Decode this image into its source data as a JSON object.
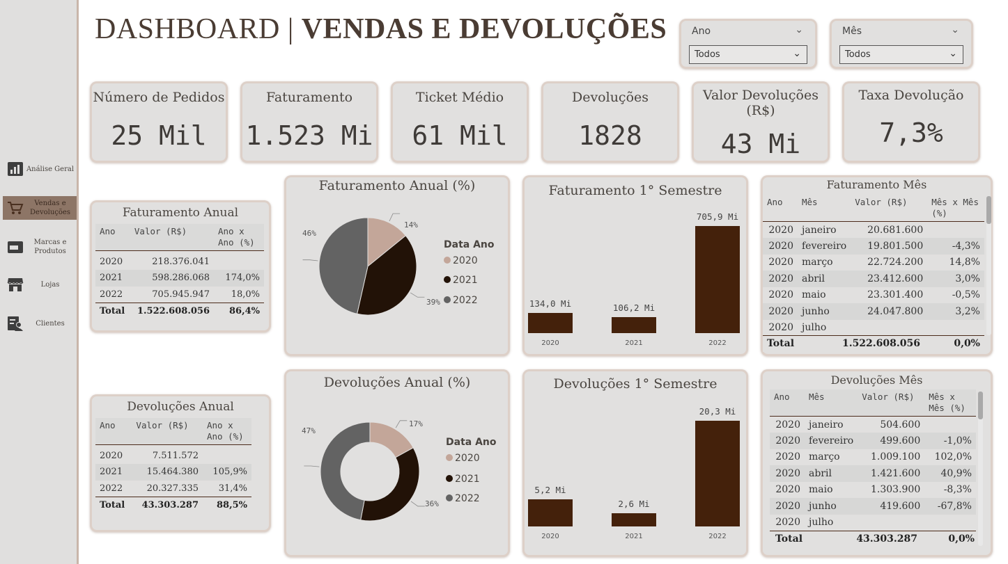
{
  "sidebar": {
    "items": [
      {
        "label": "Análise Geral",
        "icon": "bar-chart-icon"
      },
      {
        "label": "Vendas e Devoluções",
        "icon": "cart-icon"
      },
      {
        "label": "Marcas e Produtos",
        "icon": "wallet-icon"
      },
      {
        "label": "Lojas",
        "icon": "store-icon"
      },
      {
        "label": "Clientes",
        "icon": "clients-icon"
      }
    ]
  },
  "header": {
    "title_part1": "DASHBOARD | ",
    "title_part2": "VENDAS E DEVOLUÇÕES"
  },
  "filters": {
    "ano": {
      "label": "Ano",
      "value": "Todos"
    },
    "mes": {
      "label": "Mês",
      "value": "Todos"
    }
  },
  "kpis": [
    {
      "title": "Número de Pedidos",
      "value": "25 Mil"
    },
    {
      "title": "Faturamento",
      "value": "1.523 Mi"
    },
    {
      "title": "Ticket Médio",
      "value": "61 Mil"
    },
    {
      "title": "Devoluções",
      "value": "1828"
    },
    {
      "title": "Valor Devoluções (R$)",
      "value": "43 Mi"
    },
    {
      "title": "Taxa Devolução",
      "value": "7,3%"
    }
  ],
  "faturamento_anual": {
    "title": "Faturamento Anual",
    "headers": [
      "Ano",
      "Valor (R$)",
      "Ano x Ano (%)"
    ],
    "rows": [
      [
        "2020",
        "218.376.041",
        ""
      ],
      [
        "2021",
        "598.286.068",
        "174,0%"
      ],
      [
        "2022",
        "705.945.947",
        "18,0%"
      ]
    ],
    "total": [
      "Total",
      "1.522.608.056",
      "86,4%"
    ]
  },
  "devolucoes_anual_tbl": {
    "title": "Devoluções Anual",
    "headers": [
      "Ano",
      "Valor (R$)",
      "Ano x Ano (%)"
    ],
    "rows": [
      [
        "2020",
        "7.511.572",
        ""
      ],
      [
        "2021",
        "15.464.380",
        "105,9%"
      ],
      [
        "2022",
        "20.327.335",
        "31,4%"
      ]
    ],
    "total": [
      "Total",
      "43.303.287",
      "88,5%"
    ]
  },
  "faturamento_mes": {
    "title": "Faturamento Mês",
    "headers": [
      "Ano",
      "Mês",
      "Valor (R$)",
      "Mês x Mês (%)"
    ],
    "rows": [
      [
        "2020",
        "janeiro",
        "20.681.600",
        ""
      ],
      [
        "2020",
        "fevereiro",
        "19.801.500",
        "-4,3%"
      ],
      [
        "2020",
        "março",
        "22.724.200",
        "14,8%"
      ],
      [
        "2020",
        "abril",
        "23.412.600",
        "3,0%"
      ],
      [
        "2020",
        "maio",
        "23.301.400",
        "-0,5%"
      ],
      [
        "2020",
        "junho",
        "24.047.800",
        "3,2%"
      ],
      [
        "2020",
        "julho",
        "",
        ""
      ]
    ],
    "total": [
      "Total",
      "",
      "1.522.608.056",
      "0,0%"
    ]
  },
  "devolucoes_mes": {
    "title": "Devoluções Mês",
    "headers": [
      "Ano",
      "Mês",
      "Valor (R$)",
      "Mês x Mês (%)"
    ],
    "rows": [
      [
        "2020",
        "janeiro",
        "504.600",
        ""
      ],
      [
        "2020",
        "fevereiro",
        "499.600",
        "-1,0%"
      ],
      [
        "2020",
        "março",
        "1.009.100",
        "102,0%"
      ],
      [
        "2020",
        "abril",
        "1.421.600",
        "40,9%"
      ],
      [
        "2020",
        "maio",
        "1.303.900",
        "-8,3%"
      ],
      [
        "2020",
        "junho",
        "419.600",
        "-67,8%"
      ],
      [
        "2020",
        "julho",
        "",
        ""
      ]
    ],
    "total": [
      "Total",
      "",
      "43.303.287",
      "0,0%"
    ]
  },
  "colors": {
    "c2020": "#c3a699",
    "c2021": "#221207",
    "c2022": "#636363",
    "bar": "#44210b"
  },
  "chart_data": [
    {
      "type": "pie",
      "title": "Faturamento Anual (%)",
      "legend_title": "Data Ano",
      "legend": "right",
      "categories": [
        "2020",
        "2021",
        "2022"
      ],
      "values": [
        14,
        39,
        46
      ],
      "labels": [
        "14%",
        "39%",
        "46%"
      ]
    },
    {
      "type": "bar",
      "title": "Faturamento 1° Semestre",
      "categories": [
        "2020",
        "2021",
        "2022"
      ],
      "values": [
        134.0,
        106.2,
        705.9
      ],
      "labels": [
        "134,0 Mi",
        "106,2 Mi",
        "705,9 Mi"
      ]
    },
    {
      "type": "pie",
      "title": "Devoluções Anual (%)",
      "legend_title": "Data Ano",
      "legend": "right",
      "donut": true,
      "categories": [
        "2020",
        "2021",
        "2022"
      ],
      "values": [
        17,
        36,
        47
      ],
      "labels": [
        "17%",
        "36%",
        "47%"
      ]
    },
    {
      "type": "bar",
      "title": "Devoluções 1° Semestre",
      "categories": [
        "2020",
        "2021",
        "2022"
      ],
      "values": [
        5.2,
        2.6,
        20.3
      ],
      "labels": [
        "5,2 Mi",
        "2,6 Mi",
        "20,3 Mi"
      ]
    }
  ]
}
